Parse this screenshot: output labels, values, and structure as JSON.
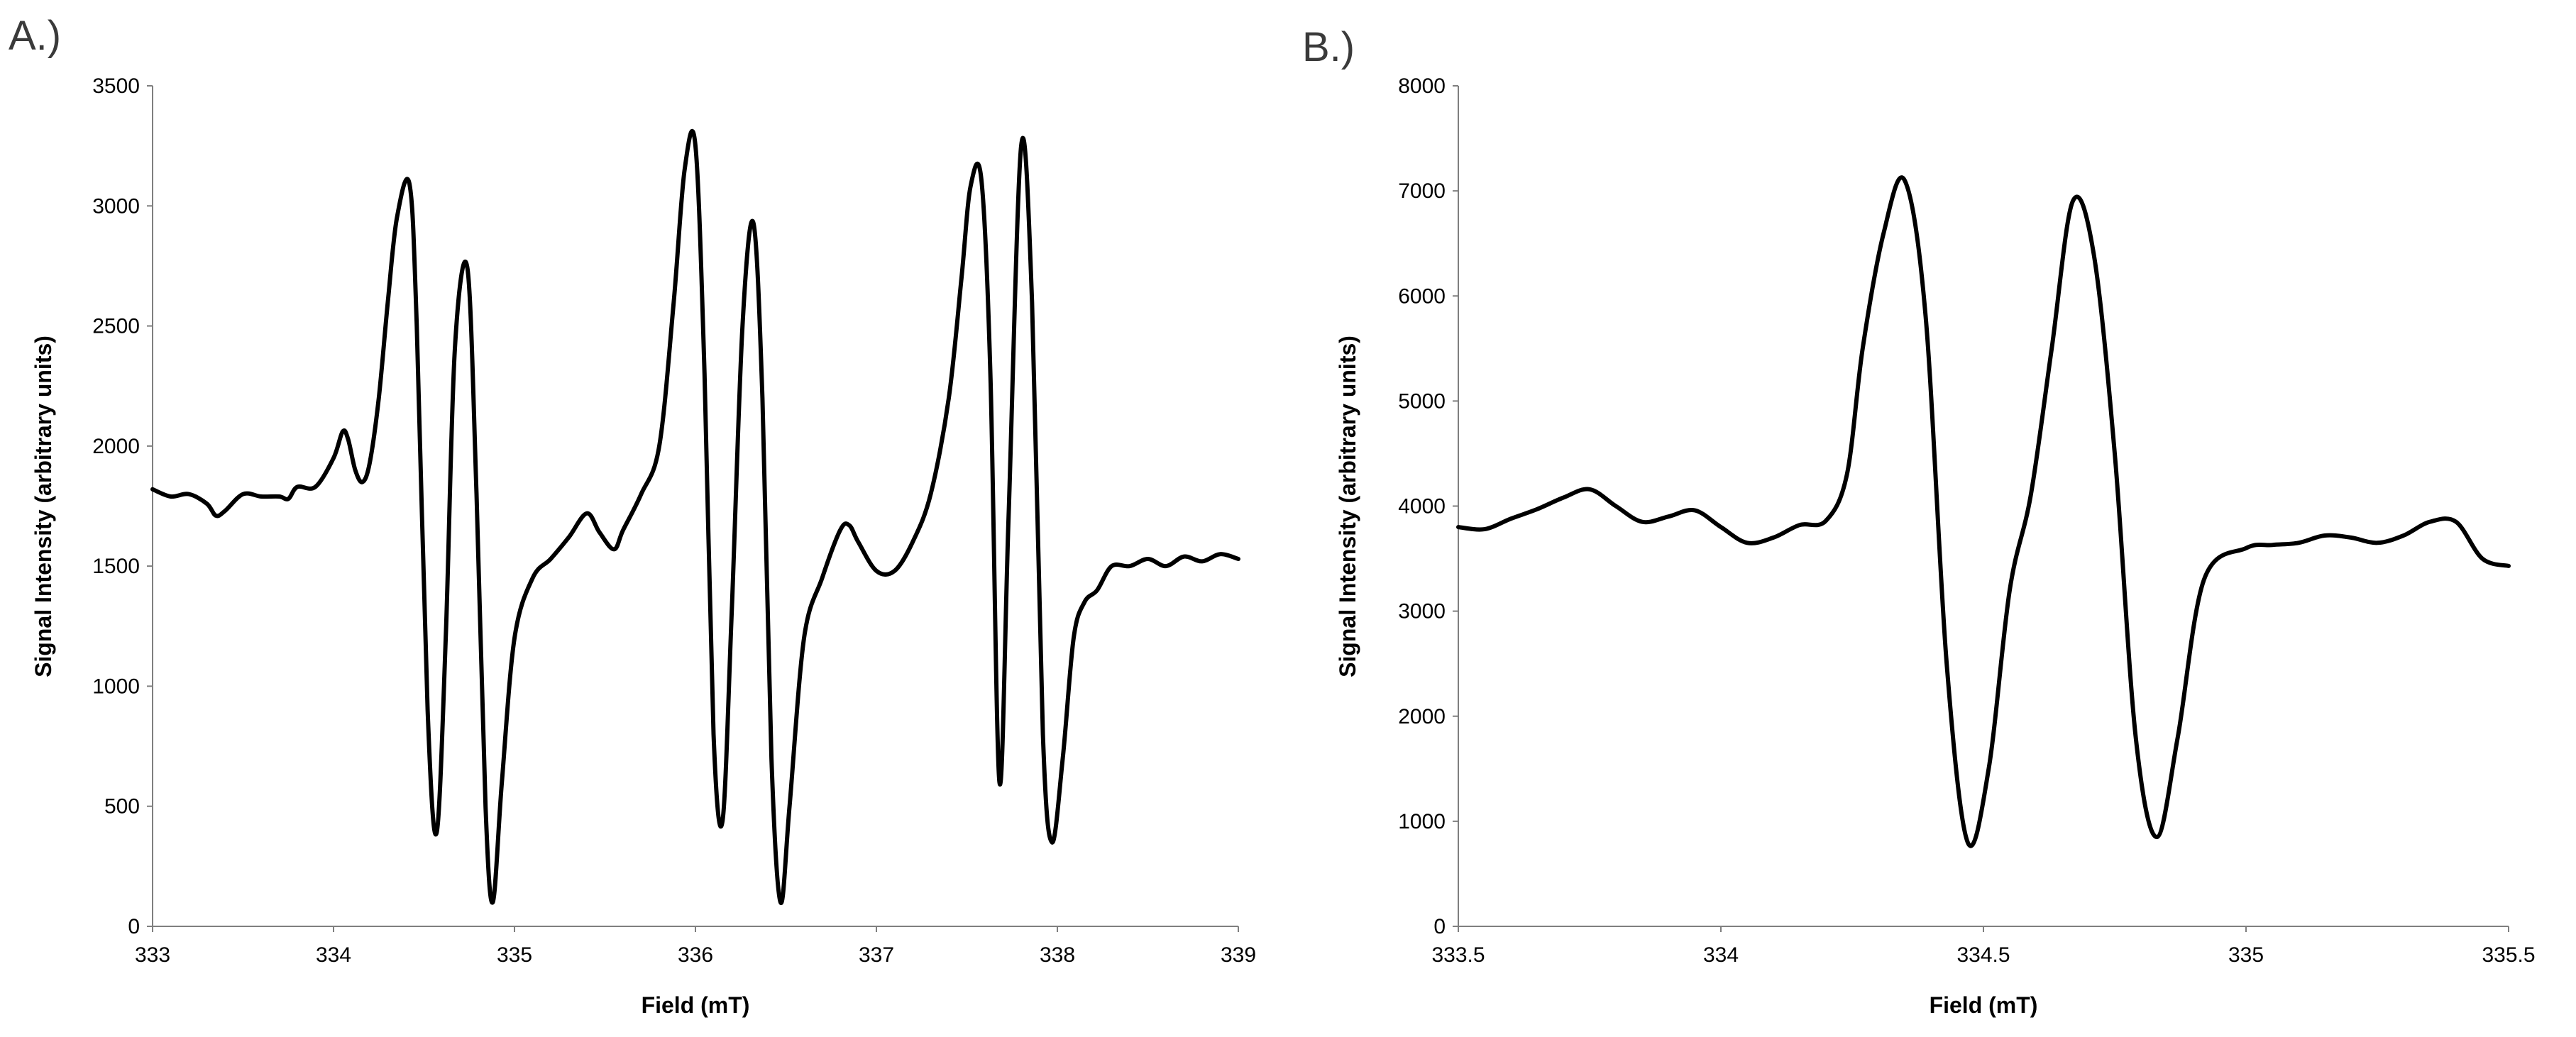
{
  "panels": [
    "A.)",
    "B.)"
  ],
  "chart_data": [
    {
      "type": "line",
      "panel": "A.)",
      "title": "",
      "xlabel": "Field (mT)",
      "ylabel": "Signal Intensity (arbitrary units)",
      "xlim": [
        333,
        339
      ],
      "ylim": [
        0,
        3500
      ],
      "xticks": [
        333,
        334,
        335,
        336,
        337,
        338,
        339
      ],
      "yticks": [
        0,
        500,
        1000,
        1500,
        2000,
        2500,
        3000,
        3500
      ],
      "grid": false,
      "legend": "none",
      "series": [
        {
          "x": [
            333.0,
            333.1,
            333.2,
            333.3,
            333.35,
            333.4,
            333.5,
            333.6,
            333.7,
            333.75,
            333.8,
            333.9,
            334.0,
            334.05,
            334.08,
            334.12,
            334.16,
            334.2,
            334.25,
            334.3,
            334.35,
            334.42,
            334.46,
            334.52,
            334.57,
            334.62,
            334.67,
            334.74,
            334.79,
            334.84,
            334.88,
            334.93,
            335.0,
            335.1,
            335.2,
            335.3,
            335.4,
            335.47,
            335.55,
            335.6,
            335.7,
            335.8,
            335.88,
            335.94,
            336.0,
            336.05,
            336.1,
            336.15,
            336.2,
            336.26,
            336.32,
            336.37,
            336.42,
            336.47,
            336.52,
            336.6,
            336.7,
            336.8,
            336.85,
            336.9,
            337.0,
            337.1,
            337.2,
            337.3,
            337.4,
            337.47,
            337.52,
            337.58,
            337.63,
            337.68,
            337.73,
            337.8,
            337.86,
            337.92,
            337.97,
            338.03,
            338.09,
            338.15,
            338.22,
            338.3,
            338.4,
            338.5,
            338.6,
            338.7,
            338.8,
            338.9,
            339.0
          ],
          "values": [
            1820,
            1790,
            1800,
            1760,
            1710,
            1730,
            1800,
            1790,
            1790,
            1780,
            1830,
            1830,
            1950,
            2060,
            2030,
            1900,
            1850,
            1930,
            2200,
            2600,
            2950,
            3090,
            2500,
            900,
            390,
            1200,
            2400,
            2740,
            1800,
            500,
            100,
            600,
            1200,
            1450,
            1530,
            1620,
            1720,
            1640,
            1570,
            1650,
            1800,
            2000,
            2600,
            3150,
            3250,
            2300,
            800,
            440,
            1300,
            2500,
            2930,
            2200,
            700,
            100,
            500,
            1200,
            1450,
            1650,
            1670,
            1600,
            1480,
            1480,
            1600,
            1800,
            2200,
            2700,
            3080,
            3110,
            2300,
            600,
            1700,
            3250,
            2600,
            800,
            350,
            700,
            1200,
            1350,
            1400,
            1500,
            1500,
            1530,
            1500,
            1540,
            1520,
            1550,
            1530
          ]
        }
      ]
    },
    {
      "type": "line",
      "panel": "B.)",
      "title": "",
      "xlabel": "Field (mT)",
      "ylabel": "Signal Intensity (arbitrary units)",
      "xlim": [
        333.5,
        335.5
      ],
      "ylim": [
        0,
        8000
      ],
      "xticks": [
        333.5,
        334,
        334.5,
        335,
        335.5
      ],
      "yticks": [
        0,
        1000,
        2000,
        3000,
        4000,
        5000,
        6000,
        7000,
        8000
      ],
      "grid": false,
      "legend": "none",
      "series": [
        {
          "x": [
            333.5,
            333.55,
            333.6,
            333.65,
            333.7,
            333.75,
            333.8,
            333.85,
            333.9,
            333.95,
            334.0,
            334.05,
            334.1,
            334.15,
            334.2,
            334.24,
            334.27,
            334.31,
            334.35,
            334.39,
            334.43,
            334.47,
            334.51,
            334.55,
            334.59,
            334.63,
            334.67,
            334.71,
            334.75,
            334.79,
            334.83,
            334.87,
            334.92,
            335.0,
            335.05,
            335.1,
            335.15,
            335.2,
            335.25,
            335.3,
            335.35,
            335.4,
            335.45,
            335.5
          ],
          "values": [
            3800,
            3780,
            3880,
            3970,
            4080,
            4160,
            4000,
            3850,
            3900,
            3960,
            3800,
            3650,
            3700,
            3820,
            3860,
            4300,
            5500,
            6600,
            7100,
            5800,
            2500,
            800,
            1500,
            3200,
            4100,
            5500,
            6900,
            6400,
            4500,
            1800,
            850,
            1800,
            3300,
            3600,
            3630,
            3650,
            3720,
            3700,
            3650,
            3720,
            3850,
            3850,
            3500,
            3430
          ]
        }
      ]
    }
  ]
}
